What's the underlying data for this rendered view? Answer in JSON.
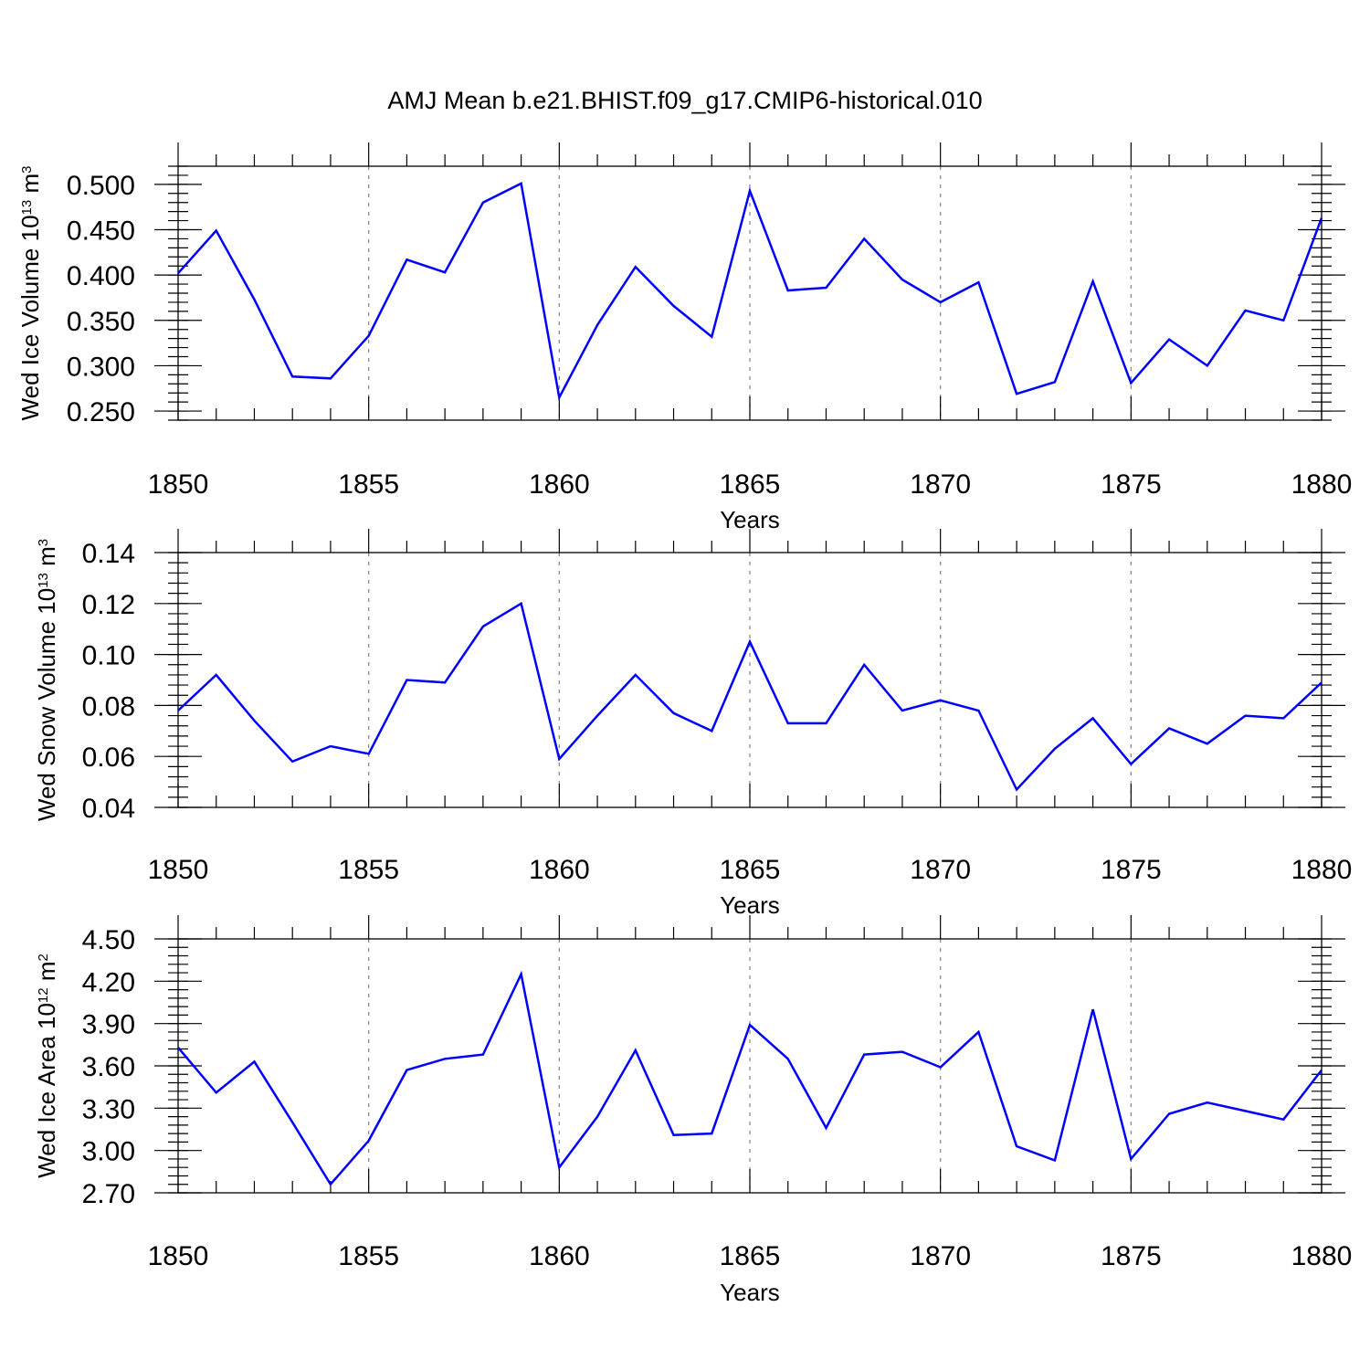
{
  "figure": {
    "title": "AMJ Mean b.e21.BHIST.f09_g17.CMIP6-historical.010"
  },
  "chart_data": [
    {
      "type": "line",
      "title": "AMJ Mean b.e21.BHIST.f09_g17.CMIP6-historical.010",
      "ylabel": {
        "base": "Wed Ice Volume 10",
        "sup": "13",
        "unit": " m",
        "unit_sup": "3"
      },
      "xlabel": "Years",
      "xlim": [
        1850,
        1880
      ],
      "ylim": [
        0.24,
        0.52
      ],
      "x_ticks": [
        "1850",
        "1855",
        "1860",
        "1865",
        "1870",
        "1875",
        "1880"
      ],
      "y_ticks": [
        "0.250",
        "0.300",
        "0.350",
        "0.400",
        "0.450",
        "0.500"
      ],
      "y_minor_step": 0.01,
      "grid": "vertical dashed at major x ticks",
      "color": "#0000ff",
      "x": [
        1850,
        1851,
        1852,
        1853,
        1854,
        1855,
        1856,
        1857,
        1858,
        1859,
        1860,
        1861,
        1862,
        1863,
        1864,
        1865,
        1866,
        1867,
        1868,
        1869,
        1870,
        1871,
        1872,
        1873,
        1874,
        1875,
        1876,
        1877,
        1878,
        1879,
        1880
      ],
      "values": [
        0.402,
        0.449,
        0.373,
        0.288,
        0.286,
        0.333,
        0.417,
        0.403,
        0.48,
        0.501,
        0.265,
        0.345,
        0.409,
        0.366,
        0.332,
        0.493,
        0.383,
        0.386,
        0.44,
        0.395,
        0.37,
        0.392,
        0.269,
        0.282,
        0.393,
        0.281,
        0.329,
        0.3,
        0.361,
        0.35,
        0.463
      ]
    },
    {
      "type": "line",
      "ylabel": {
        "base": "Wed Snow Volume 10",
        "sup": "13",
        "unit": " m",
        "unit_sup": "3"
      },
      "xlabel": "Years",
      "xlim": [
        1850,
        1880
      ],
      "ylim": [
        0.04,
        0.14
      ],
      "x_ticks": [
        "1850",
        "1855",
        "1860",
        "1865",
        "1870",
        "1875",
        "1880"
      ],
      "y_ticks": [
        "0.04",
        "0.06",
        "0.08",
        "0.10",
        "0.12",
        "0.14"
      ],
      "y_minor_step": 0.004,
      "grid": "vertical dashed at major x ticks",
      "color": "#0000ff",
      "x": [
        1850,
        1851,
        1852,
        1853,
        1854,
        1855,
        1856,
        1857,
        1858,
        1859,
        1860,
        1861,
        1862,
        1863,
        1864,
        1865,
        1866,
        1867,
        1868,
        1869,
        1870,
        1871,
        1872,
        1873,
        1874,
        1875,
        1876,
        1877,
        1878,
        1879,
        1880
      ],
      "values": [
        0.078,
        0.092,
        0.074,
        0.058,
        0.064,
        0.061,
        0.09,
        0.089,
        0.111,
        0.12,
        0.059,
        0.076,
        0.092,
        0.077,
        0.07,
        0.105,
        0.073,
        0.073,
        0.096,
        0.078,
        0.082,
        0.078,
        0.047,
        0.063,
        0.075,
        0.057,
        0.071,
        0.065,
        0.076,
        0.075,
        0.089
      ]
    },
    {
      "type": "line",
      "ylabel": {
        "base": "Wed Ice Area 10",
        "sup": "12",
        "unit": " m",
        "unit_sup": "2"
      },
      "xlabel": "Years",
      "xlim": [
        1850,
        1880
      ],
      "ylim": [
        2.7,
        4.5
      ],
      "x_ticks": [
        "1850",
        "1855",
        "1860",
        "1865",
        "1870",
        "1875",
        "1880"
      ],
      "y_ticks": [
        "2.70",
        "3.00",
        "3.30",
        "3.60",
        "3.90",
        "4.20",
        "4.50"
      ],
      "y_minor_step": 0.06,
      "grid": "vertical dashed at major x ticks",
      "color": "#0000ff",
      "x": [
        1850,
        1851,
        1852,
        1853,
        1854,
        1855,
        1856,
        1857,
        1858,
        1859,
        1860,
        1861,
        1862,
        1863,
        1864,
        1865,
        1866,
        1867,
        1868,
        1869,
        1870,
        1871,
        1872,
        1873,
        1874,
        1875,
        1876,
        1877,
        1878,
        1879,
        1880
      ],
      "values": [
        3.73,
        3.41,
        3.63,
        3.2,
        2.76,
        3.07,
        3.57,
        3.65,
        3.68,
        4.25,
        2.88,
        3.24,
        3.71,
        3.11,
        3.12,
        3.89,
        3.65,
        3.16,
        3.68,
        3.7,
        3.59,
        3.84,
        3.03,
        2.93,
        4.0,
        2.94,
        3.26,
        3.34,
        3.28,
        3.22,
        3.57
      ]
    }
  ]
}
